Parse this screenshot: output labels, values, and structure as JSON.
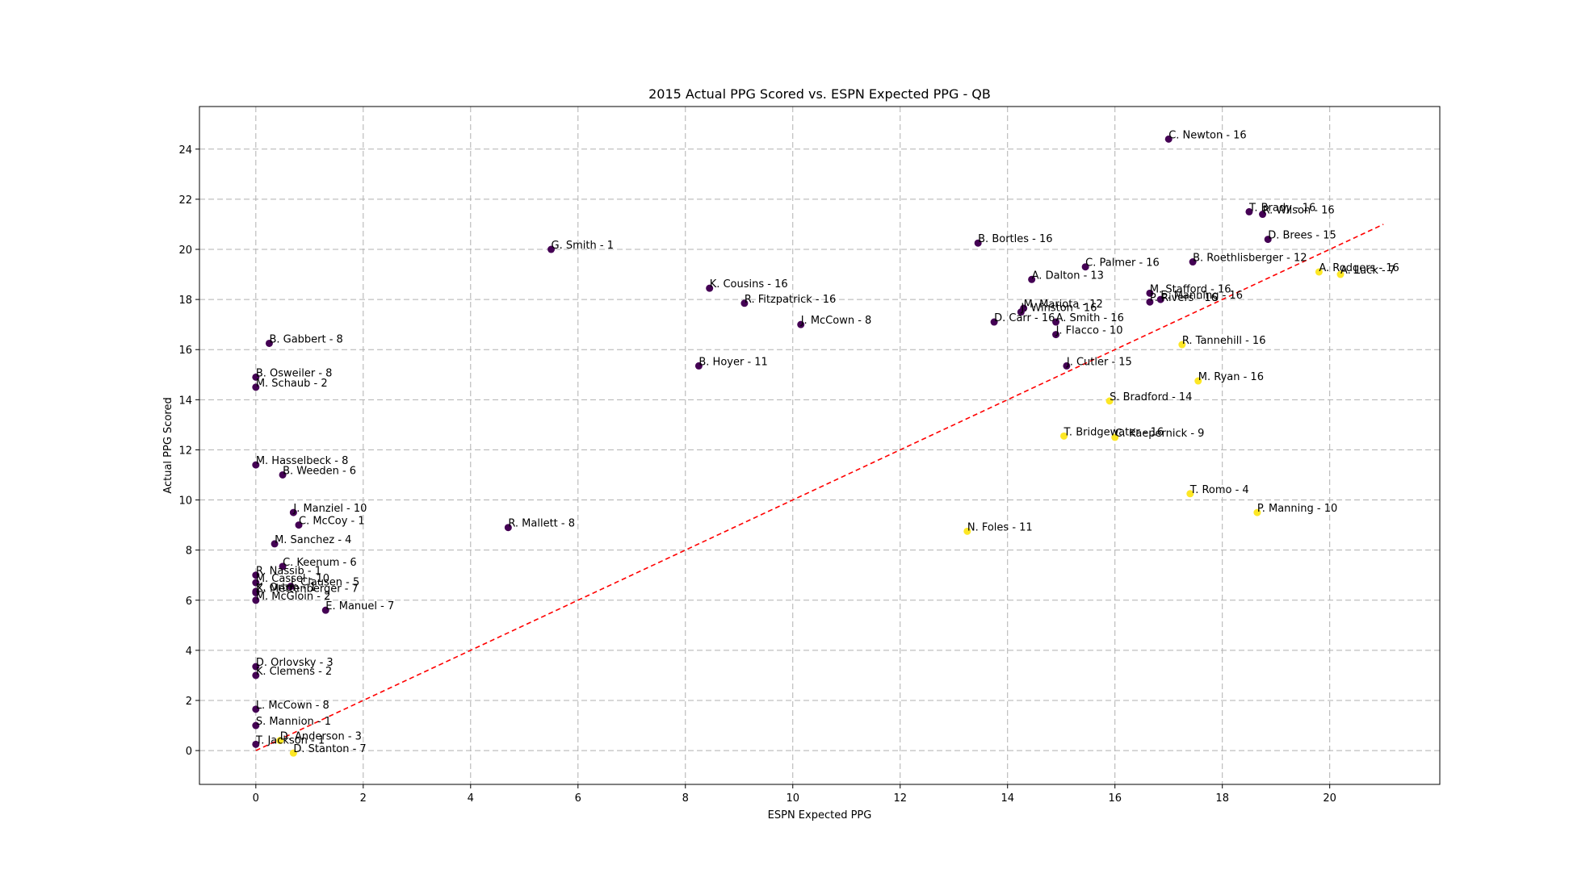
{
  "chart_data": {
    "type": "scatter",
    "title": "2015 Actual PPG Scored vs. ESPN Expected PPG - QB",
    "xlabel": "ESPN Expected PPG",
    "ylabel": "Actual PPG Scored",
    "xlim": [
      -1.05,
      22.05
    ],
    "ylim": [
      -1.35,
      25.7
    ],
    "xticks": [
      0,
      2,
      4,
      6,
      8,
      10,
      12,
      14,
      16,
      18,
      20
    ],
    "yticks": [
      0,
      2,
      4,
      6,
      8,
      10,
      12,
      14,
      16,
      18,
      20,
      22,
      24
    ],
    "grid": true,
    "colors": {
      "below": "#440154",
      "above": "#fde725",
      "trend": "#ff0000"
    },
    "trendline": {
      "x": [
        0,
        21
      ],
      "y": [
        0,
        21
      ]
    },
    "points": [
      {
        "label": "C. Newton - 16",
        "x": 17.0,
        "y": 24.4,
        "color": "below"
      },
      {
        "label": "T. Brady - 16",
        "x": 18.5,
        "y": 21.5,
        "color": "below"
      },
      {
        "label": "R. Wilson - 16",
        "x": 18.75,
        "y": 21.4,
        "color": "below"
      },
      {
        "label": "D. Brees - 15",
        "x": 18.85,
        "y": 20.4,
        "color": "below"
      },
      {
        "label": "B. Bortles - 16",
        "x": 13.45,
        "y": 20.25,
        "color": "below"
      },
      {
        "label": "G. Smith - 1",
        "x": 5.5,
        "y": 20.0,
        "color": "below"
      },
      {
        "label": "B. Roethlisberger - 12",
        "x": 17.45,
        "y": 19.5,
        "color": "below"
      },
      {
        "label": "C. Palmer - 16",
        "x": 15.45,
        "y": 19.3,
        "color": "below"
      },
      {
        "label": "A. Rodgers - 16",
        "x": 19.8,
        "y": 19.1,
        "color": "above"
      },
      {
        "label": "A. Luck - 7",
        "x": 20.2,
        "y": 19.0,
        "color": "above"
      },
      {
        "label": "A. Dalton - 13",
        "x": 14.45,
        "y": 18.8,
        "color": "below"
      },
      {
        "label": "K. Cousins - 16",
        "x": 8.45,
        "y": 18.45,
        "color": "below"
      },
      {
        "label": "M. Stafford - 16",
        "x": 16.65,
        "y": 18.25,
        "color": "below"
      },
      {
        "label": "E. Manning - 16",
        "x": 16.85,
        "y": 18.0,
        "color": "below"
      },
      {
        "label": "P. Rivers - 16",
        "x": 16.65,
        "y": 17.9,
        "color": "below"
      },
      {
        "label": "R. Fitzpatrick - 16",
        "x": 9.1,
        "y": 17.85,
        "color": "below"
      },
      {
        "label": "M. Mariota - 12",
        "x": 14.3,
        "y": 17.65,
        "color": "below"
      },
      {
        "label": "J. Winston - 16",
        "x": 14.25,
        "y": 17.5,
        "color": "below"
      },
      {
        "label": "A. Smith - 16",
        "x": 14.9,
        "y": 17.1,
        "color": "below"
      },
      {
        "label": "D. Carr - 16",
        "x": 13.75,
        "y": 17.1,
        "color": "below"
      },
      {
        "label": "J. McCown - 8",
        "x": 10.15,
        "y": 17.0,
        "color": "below"
      },
      {
        "label": "J. Flacco - 10",
        "x": 14.9,
        "y": 16.6,
        "color": "below"
      },
      {
        "label": "B. Gabbert - 8",
        "x": 0.25,
        "y": 16.25,
        "color": "below"
      },
      {
        "label": "R. Tannehill - 16",
        "x": 17.25,
        "y": 16.2,
        "color": "above"
      },
      {
        "label": "B. Hoyer - 11",
        "x": 8.25,
        "y": 15.35,
        "color": "below"
      },
      {
        "label": "J. Cutler - 15",
        "x": 15.1,
        "y": 15.35,
        "color": "below"
      },
      {
        "label": "B. Osweiler - 8",
        "x": 0.0,
        "y": 14.9,
        "color": "below"
      },
      {
        "label": "M. Ryan - 16",
        "x": 17.55,
        "y": 14.75,
        "color": "above"
      },
      {
        "label": "M. Schaub - 2",
        "x": 0.0,
        "y": 14.5,
        "color": "below"
      },
      {
        "label": "S. Bradford - 14",
        "x": 15.9,
        "y": 13.95,
        "color": "above"
      },
      {
        "label": "T. Bridgewater - 16",
        "x": 15.05,
        "y": 12.55,
        "color": "above"
      },
      {
        "label": "C. Kaepernick - 9",
        "x": 16.0,
        "y": 12.5,
        "color": "above"
      },
      {
        "label": "M. Hasselbeck - 8",
        "x": 0.0,
        "y": 11.4,
        "color": "below"
      },
      {
        "label": "B. Weeden - 6",
        "x": 0.5,
        "y": 11.0,
        "color": "below"
      },
      {
        "label": "T. Romo - 4",
        "x": 17.4,
        "y": 10.25,
        "color": "above"
      },
      {
        "label": "J. Manziel - 10",
        "x": 0.7,
        "y": 9.5,
        "color": "below"
      },
      {
        "label": "P. Manning - 10",
        "x": 18.65,
        "y": 9.5,
        "color": "above"
      },
      {
        "label": "C. McCoy - 1",
        "x": 0.8,
        "y": 9.0,
        "color": "below"
      },
      {
        "label": "R. Mallett - 8",
        "x": 4.7,
        "y": 8.9,
        "color": "below"
      },
      {
        "label": "N. Foles - 11",
        "x": 13.25,
        "y": 8.75,
        "color": "above"
      },
      {
        "label": "M. Sanchez - 4",
        "x": 0.35,
        "y": 8.25,
        "color": "below"
      },
      {
        "label": "C. Keenum - 6",
        "x": 0.5,
        "y": 7.35,
        "color": "below"
      },
      {
        "label": "R. Nassib - 1",
        "x": 0.0,
        "y": 7.0,
        "color": "below"
      },
      {
        "label": "M. Cassel - 10",
        "x": 0.0,
        "y": 6.7,
        "color": "below"
      },
      {
        "label": "J. Clausen - 5",
        "x": 0.65,
        "y": 6.55,
        "color": "below"
      },
      {
        "label": "K. Orton - 1",
        "x": 0.0,
        "y": 6.35,
        "color": "below"
      },
      {
        "label": "Z. Mettenberger - 7",
        "x": 0.0,
        "y": 6.3,
        "color": "below"
      },
      {
        "label": "M. McGloin - 2",
        "x": 0.0,
        "y": 6.0,
        "color": "below"
      },
      {
        "label": "E. Manuel - 7",
        "x": 1.3,
        "y": 5.6,
        "color": "below"
      },
      {
        "label": "D. Orlovsky - 3",
        "x": 0.0,
        "y": 3.35,
        "color": "below"
      },
      {
        "label": "K. Clemens - 2",
        "x": 0.0,
        "y": 3.0,
        "color": "below"
      },
      {
        "label": "L. McCown - 8",
        "x": 0.0,
        "y": 1.65,
        "color": "below"
      },
      {
        "label": "S. Mannion - 1",
        "x": 0.0,
        "y": 1.0,
        "color": "below"
      },
      {
        "label": "D. Anderson - 3",
        "x": 0.45,
        "y": 0.4,
        "color": "above"
      },
      {
        "label": "T. Jackson - 1",
        "x": 0.0,
        "y": 0.25,
        "color": "below"
      },
      {
        "label": "D. Stanton - 7",
        "x": 0.7,
        "y": -0.1,
        "color": "above"
      }
    ]
  }
}
